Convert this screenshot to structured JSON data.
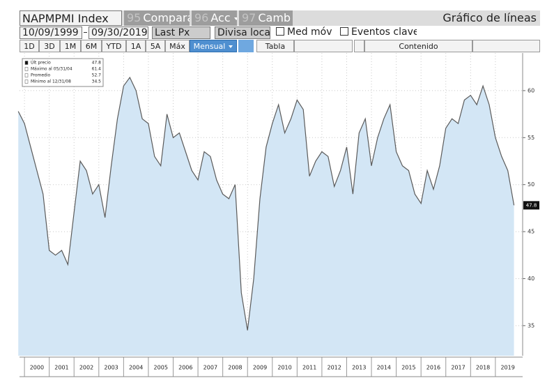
{
  "toolbar": {
    "ticker": "NAPMPMI Index",
    "compare_num": "95",
    "compare": "Comparar",
    "actions_num": "96",
    "actions": "Acc",
    "change_num": "97",
    "change": "Camb",
    "view": "Gráfico de líneas",
    "start_date": "10/09/1999",
    "end_date": "09/30/2019",
    "field": "Last Px",
    "currency": "Divisa local",
    "moving_avg": "Med móv",
    "events": "Eventos clave",
    "periods": [
      "1D",
      "3D",
      "1M",
      "6M",
      "YTD",
      "1A",
      "5A",
      "Máx"
    ],
    "frequency": "Mensual",
    "table": "Tabla",
    "contents": "Contenido"
  },
  "chart_data": {
    "type": "area",
    "x": [
      1999.75,
      2000,
      2000.25,
      2000.5,
      2000.75,
      2001,
      2001.25,
      2001.5,
      2001.75,
      2002,
      2002.25,
      2002.5,
      2002.75,
      2003,
      2003.25,
      2003.5,
      2003.75,
      2004,
      2004.25,
      2004.5,
      2004.75,
      2005,
      2005.25,
      2005.5,
      2005.75,
      2006,
      2006.25,
      2006.5,
      2006.75,
      2007,
      2007.25,
      2007.5,
      2007.75,
      2008,
      2008.25,
      2008.5,
      2008.75,
      2009,
      2009.25,
      2009.5,
      2009.75,
      2010,
      2010.25,
      2010.5,
      2010.75,
      2011,
      2011.25,
      2011.5,
      2011.75,
      2012,
      2012.25,
      2012.5,
      2012.75,
      2013,
      2013.25,
      2013.5,
      2013.75,
      2014,
      2014.25,
      2014.5,
      2014.75,
      2015,
      2015.25,
      2015.5,
      2015.75,
      2016,
      2016.25,
      2016.5,
      2016.75,
      2017,
      2017.25,
      2017.5,
      2017.75,
      2018,
      2018.25,
      2018.5,
      2018.75,
      2019,
      2019.25,
      2019.5,
      2019.75
    ],
    "values": [
      57.8,
      56.5,
      54,
      51.5,
      49,
      43,
      42.5,
      43,
      41.5,
      47,
      52.5,
      51.5,
      49,
      50,
      46.5,
      52,
      57,
      60.5,
      61.4,
      60,
      57,
      56.5,
      53,
      52,
      57.5,
      55,
      55.5,
      53.5,
      51.5,
      50.5,
      53.5,
      53,
      50.5,
      49,
      48.5,
      50,
      38.5,
      34.5,
      40,
      48.5,
      54,
      56.5,
      58.5,
      55.5,
      57,
      59,
      58,
      50.9,
      52.5,
      53.5,
      53,
      49.8,
      51.5,
      54,
      49,
      55.5,
      57,
      52,
      55,
      57,
      58.5,
      53.5,
      52,
      51.5,
      49,
      48,
      51.5,
      49.5,
      52,
      56,
      57,
      56.5,
      59,
      59.5,
      58.5,
      60.5,
      58.5,
      55,
      53,
      51.5,
      47.8
    ],
    "color": "#5a5a5a",
    "fill": "#d3e6f5",
    "xlim": [
      1999.8,
      2020.1
    ],
    "xticks": [
      2000,
      2001,
      2002,
      2003,
      2004,
      2005,
      2006,
      2007,
      2008,
      2009,
      2010,
      2011,
      2012,
      2013,
      2014,
      2015,
      2016,
      2017,
      2018,
      2019
    ],
    "ylim": [
      31.8,
      64
    ],
    "yticks": [
      35,
      40,
      45,
      50,
      55,
      60
    ],
    "grid": true,
    "stats": [
      {
        "label": "Últ precio",
        "value": 47.8
      },
      {
        "label": "Máximo al 05/31/04",
        "value": 61.4
      },
      {
        "label": "Promedio",
        "value": 52.7
      },
      {
        "label": "Mínimo al 12/31/08",
        "value": 34.5
      }
    ]
  }
}
